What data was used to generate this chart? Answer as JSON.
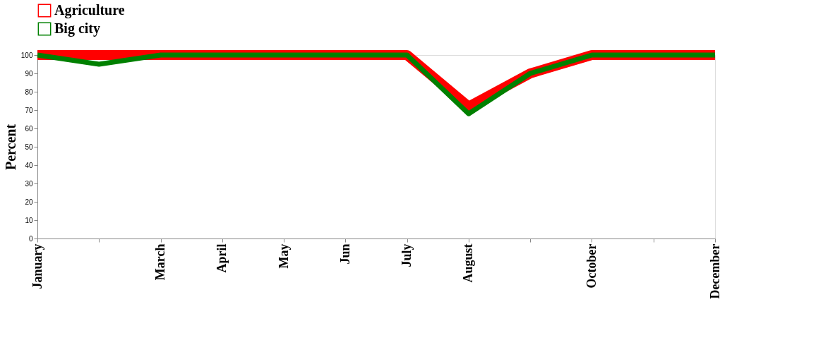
{
  "chart_data": {
    "type": "line",
    "ylabel": "Percent",
    "categories": [
      "January",
      null,
      "March",
      "April",
      "May",
      "Jun",
      "July",
      "August",
      null,
      "October",
      null,
      "December"
    ],
    "series": [
      {
        "name": "Agriculture",
        "color": "#ff0000",
        "values": [
          100,
          100,
          100,
          100,
          100,
          100,
          100,
          72,
          90,
          100,
          100,
          100
        ]
      },
      {
        "name": "Big city",
        "color": "#008000",
        "values": [
          100,
          95,
          100,
          100,
          100,
          100,
          100,
          68,
          90,
          100,
          100,
          100
        ]
      }
    ],
    "ylim": [
      0,
      100
    ],
    "yticks": [
      0,
      10,
      20,
      30,
      40,
      50,
      60,
      70,
      80,
      90,
      100
    ],
    "grid": false,
    "legend": "top",
    "marker": "none",
    "line_style": "solid"
  }
}
